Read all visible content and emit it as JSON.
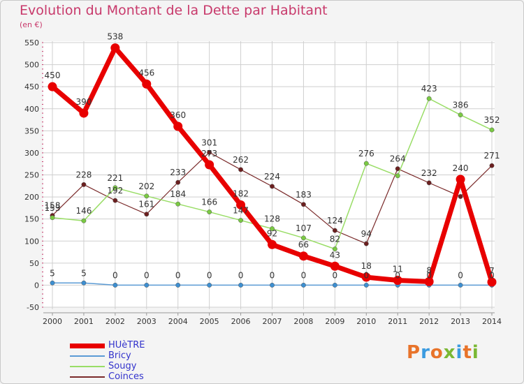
{
  "title": "Evolution du Montant de la Dette par Habitant",
  "subtitle": "(en €)",
  "logo": {
    "text": "Proxiti",
    "colors": [
      "#e8732a",
      "#3b9be0",
      "#e8732a",
      "#7ab834",
      "#3b9be0",
      "#e8732a",
      "#7ab834"
    ]
  },
  "chart_data": {
    "type": "line",
    "x": [
      "2000",
      "2001",
      "2002",
      "2003",
      "2004",
      "2005",
      "2006",
      "2007",
      "2008",
      "2009",
      "2010",
      "2011",
      "2012",
      "2013",
      "2014"
    ],
    "ylim": [
      -50,
      550
    ],
    "yticks": [
      -50,
      0,
      50,
      100,
      150,
      200,
      250,
      300,
      350,
      400,
      450,
      500,
      550
    ],
    "grid": true,
    "legend_position": "bottom-left",
    "series": [
      {
        "name": "HUèTRE",
        "color": "#e80000",
        "marker": "#e80000",
        "width": 7,
        "values": [
          450,
          390,
          538,
          456,
          360,
          273,
          182,
          92,
          66,
          43,
          18,
          11,
          8,
          240,
          7
        ],
        "labels": [
          "450",
          "390",
          "538",
          "456",
          "360",
          "273",
          "182",
          "92",
          "66",
          "43",
          "18",
          "11",
          "8",
          "240",
          "7"
        ]
      },
      {
        "name": "Bricy",
        "color": "#5b9bd5",
        "marker": "#3d8fd1",
        "width": 1.5,
        "values": [
          5,
          5,
          0,
          0,
          0,
          0,
          0,
          0,
          0,
          0,
          0,
          0,
          0,
          0,
          0
        ],
        "labels": [
          "5",
          "5",
          "0",
          "0",
          "0",
          "0",
          "0",
          "0",
          "0",
          "0",
          "0",
          "0",
          "0",
          "0",
          "0"
        ]
      },
      {
        "name": "Sougy",
        "color": "#99dd66",
        "marker": "#7ac943",
        "width": 1.5,
        "values": [
          153,
          146,
          221,
          202,
          184,
          166,
          147,
          128,
          107,
          82,
          276,
          248,
          423,
          386,
          352
        ],
        "labels": [
          "153",
          "146",
          "221",
          "202",
          "184",
          "166",
          "147",
          "128",
          "107",
          "82",
          "276",
          "",
          "423",
          "386",
          "352"
        ]
      },
      {
        "name": "Coinces",
        "color": "#7a2a2a",
        "marker": "#6b1f1f",
        "width": 1.2,
        "values": [
          158,
          228,
          192,
          161,
          233,
          301,
          262,
          224,
          183,
          124,
          94,
          264,
          232,
          201,
          271
        ],
        "labels": [
          "158",
          "228",
          "192",
          "161",
          "233",
          "301",
          "262",
          "224",
          "183",
          "124",
          "94",
          "264",
          "232",
          "",
          "271"
        ]
      }
    ]
  }
}
